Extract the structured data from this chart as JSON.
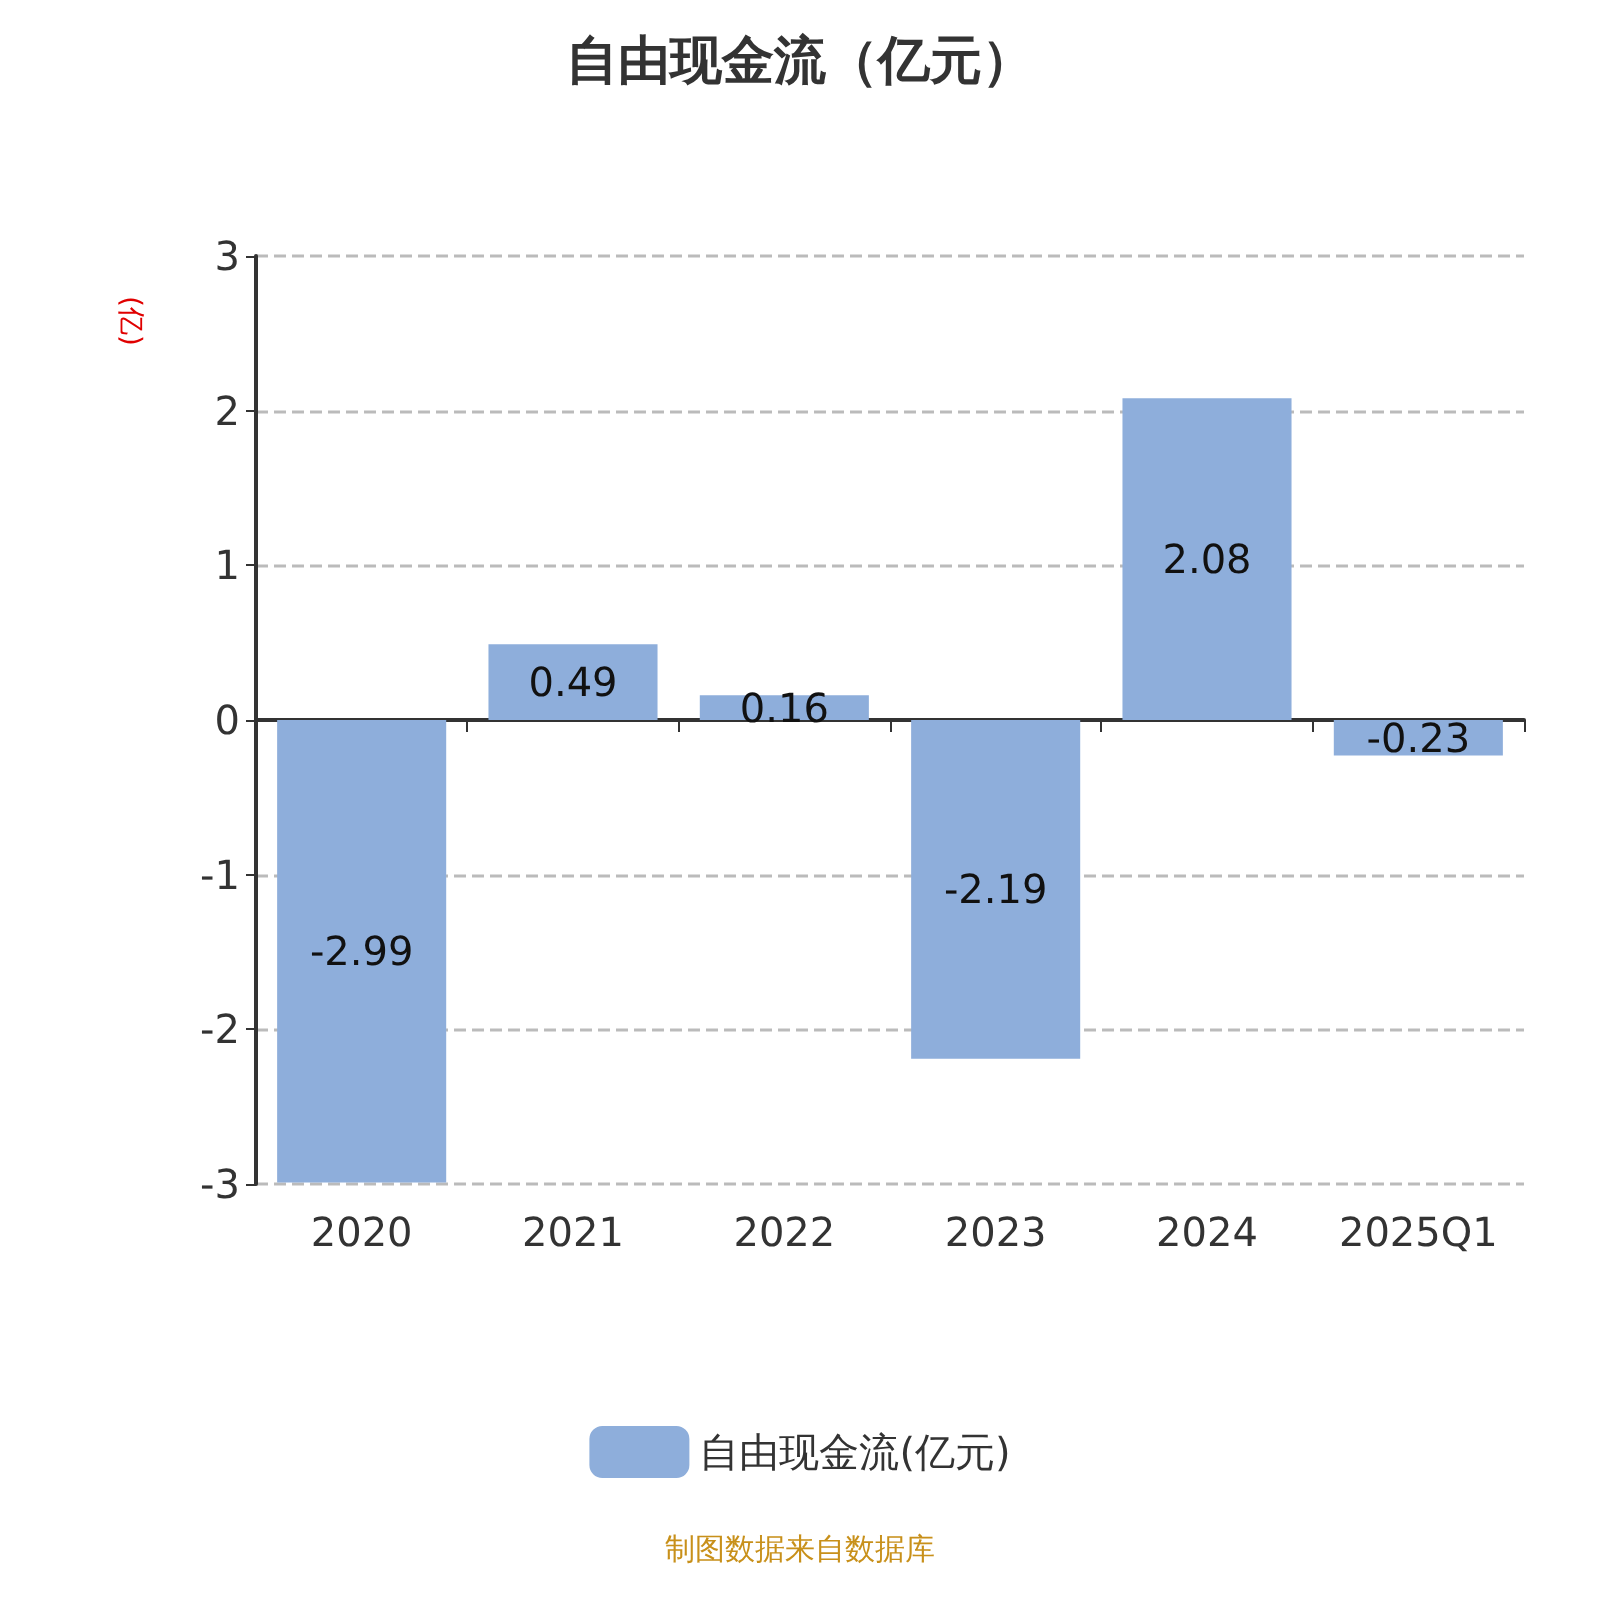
{
  "chart_data": {
    "type": "bar",
    "title": "自由现金流（亿元）",
    "ylabel": "(亿)",
    "categories": [
      "2020",
      "2021",
      "2022",
      "2023",
      "2024",
      "2025Q1"
    ],
    "series": [
      {
        "name": "自由现金流(亿元)",
        "color": "#8eaedb",
        "values": [
          -2.99,
          0.49,
          0.16,
          -2.19,
          2.08,
          -0.23
        ]
      }
    ],
    "ylim": [
      -3,
      3
    ],
    "yticks": [
      -3,
      -2,
      -1,
      0,
      1,
      2,
      3
    ],
    "grid": "y",
    "legend": "bottom",
    "data_labels": true,
    "annotations": [
      "制图数据来自数据库"
    ]
  }
}
